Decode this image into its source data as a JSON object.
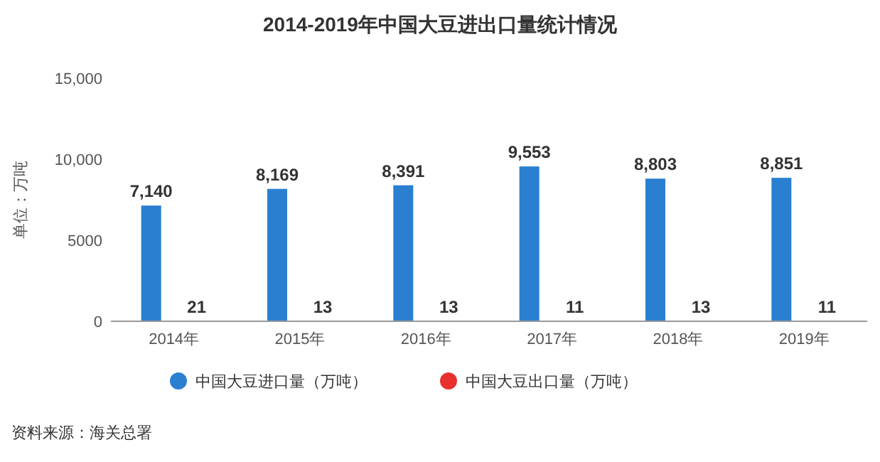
{
  "chart_data": {
    "type": "bar",
    "title": "2014-2019年中国大豆进出口量统计情况",
    "ylabel": "单位：万吨",
    "categories": [
      "2014年",
      "2015年",
      "2016年",
      "2017年",
      "2018年",
      "2019年"
    ],
    "series": [
      {
        "name": "中国大豆进口量（万吨）",
        "color": "#2a7fd0",
        "values": [
          7140,
          8169,
          8391,
          9553,
          8803,
          8851
        ],
        "value_labels": [
          "7,140",
          "8,169",
          "8,391",
          "9,553",
          "8,803",
          "8,851"
        ]
      },
      {
        "name": "中国大豆出口量（万吨）",
        "color": "#e8312f",
        "values": [
          21,
          13,
          13,
          11,
          13,
          11
        ],
        "value_labels": [
          "21",
          "13",
          "13",
          "11",
          "13",
          "11"
        ]
      }
    ],
    "ylim": [
      0,
      15000
    ],
    "yticks": [
      0,
      5000,
      {
        "value": 10000,
        "label": "10,000"
      },
      {
        "value": 15000,
        "label": "15,000"
      }
    ],
    "grid": false,
    "legend": "bottom",
    "marker": "circle",
    "annotations": [
      "资料来源：海关总署"
    ]
  }
}
